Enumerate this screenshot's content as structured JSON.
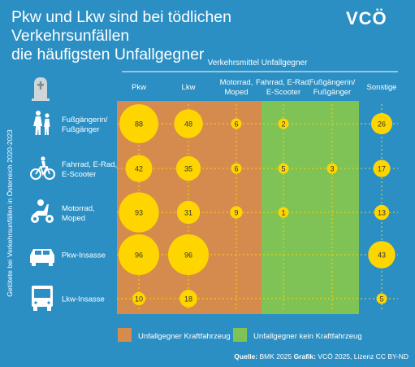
{
  "title_lines": [
    "Pkw und Lkw sind bei tödlichen Verkehrsunfällen",
    "die häufigsten Unfallgegner"
  ],
  "logo_text": "VCÖ",
  "colors": {
    "background": "#2b8fc4",
    "motor_zone": "#d58b4e",
    "nonmotor_zone": "#7fc256",
    "bubble": "#ffd500",
    "bubble_text": "#333333"
  },
  "chart_data": {
    "type": "bubble-matrix",
    "title": "Pkw und Lkw sind bei tödlichen Verkehrsunfällen die häufigsten Unfallgegner",
    "column_header": "Verkehrsmittel Unfallgegner",
    "row_axis_label": "Getötete bei Verkehrsunfällen in Österreich 2020-2023",
    "columns": [
      "Pkw",
      "Lkw",
      "Motorrad, Moped",
      "Fahrrad, E-Rad, E-Scooter",
      "Fußgängerin/ Fußgänger",
      "Sonstige"
    ],
    "column_labels": [
      [
        "Pkw"
      ],
      [
        "Lkw"
      ],
      [
        "Motorrad,",
        "Moped"
      ],
      [
        "Fahrrad, E-Rad,",
        "E-Scooter"
      ],
      [
        "Fußgängerin/",
        "Fußgänger"
      ],
      [
        "Sonstige"
      ]
    ],
    "rows": [
      "Fußgängerin/ Fußgänger",
      "Fahrrad, E-Rad, E-Scooter",
      "Motorrad, Moped",
      "Pkw-Insasse",
      "Lkw-Insasse"
    ],
    "row_labels": [
      [
        "Fußgängerin/",
        "Fußgänger"
      ],
      [
        "Fahrrad, E-Rad,",
        "E-Scooter"
      ],
      [
        "Motorrad,",
        "Moped"
      ],
      [
        "Pkw-Insasse"
      ],
      [
        "Lkw-Insasse"
      ]
    ],
    "row_icons": [
      "pedestrian-icon",
      "bicycle-icon",
      "motorcycle-icon",
      "car-icon",
      "truck-icon"
    ],
    "header_icon": "gravestone-icon",
    "values": [
      [
        88,
        48,
        6,
        2,
        null,
        26
      ],
      [
        42,
        35,
        6,
        5,
        3,
        17
      ],
      [
        93,
        31,
        9,
        1,
        null,
        13
      ],
      [
        96,
        96,
        null,
        null,
        null,
        43
      ],
      [
        10,
        18,
        null,
        null,
        null,
        5
      ]
    ],
    "legend": [
      {
        "label": "Unfallgegner Kraftfahrzeug",
        "color": "#d58b4e"
      },
      {
        "label": "Unfallgegner kein Kraftfahrzeug",
        "color": "#7fc256"
      }
    ]
  },
  "source": {
    "quelle_label": "Quelle:",
    "quelle_text": "BMK 2025",
    "grafik_label": "Grafik:",
    "grafik_text": "VCÖ 2025, Lizenz CC BY-ND"
  }
}
